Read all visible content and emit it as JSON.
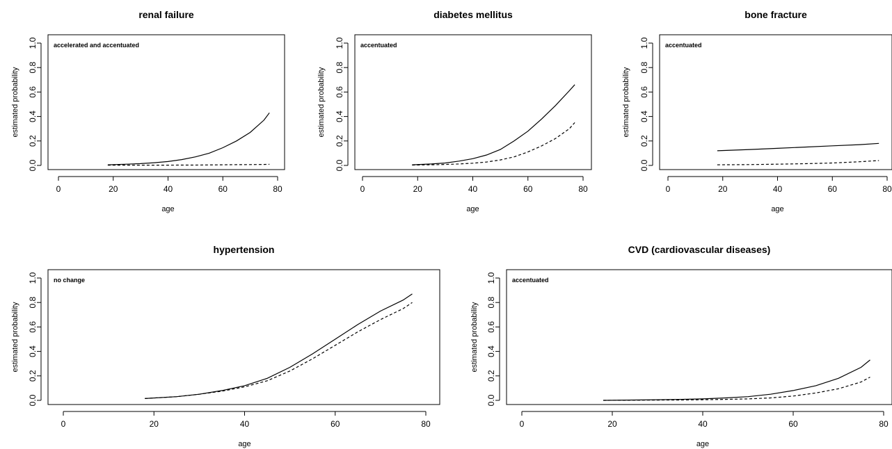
{
  "chart_data": [
    {
      "type": "line",
      "title": "renal failure",
      "xlabel": "age",
      "ylabel": "estimated probability",
      "annotation": "accelerated and accentuated",
      "xlim": [
        0,
        80
      ],
      "ylim": [
        0,
        1
      ],
      "xticks": [
        "0",
        "20",
        "40",
        "60",
        "80"
      ],
      "yticks": [
        "0.0",
        "0.2",
        "0.4",
        "0.6",
        "0.8",
        "1.0"
      ],
      "x": [
        18,
        25,
        30,
        35,
        40,
        45,
        50,
        55,
        60,
        65,
        70,
        75,
        77
      ],
      "series": [
        {
          "style": "solid",
          "values": [
            0.005,
            0.01,
            0.015,
            0.022,
            0.032,
            0.048,
            0.07,
            0.1,
            0.145,
            0.2,
            0.27,
            0.37,
            0.43
          ]
        },
        {
          "style": "dashed",
          "values": [
            0.002,
            0.002,
            0.002,
            0.002,
            0.002,
            0.003,
            0.003,
            0.004,
            0.005,
            0.006,
            0.007,
            0.008,
            0.009
          ]
        }
      ]
    },
    {
      "type": "line",
      "title": "diabetes mellitus",
      "xlabel": "age",
      "ylabel": "estimated probability",
      "annotation": "accentuated",
      "xlim": [
        0,
        80
      ],
      "ylim": [
        0,
        1
      ],
      "xticks": [
        "0",
        "20",
        "40",
        "60",
        "80"
      ],
      "yticks": [
        "0.0",
        "0.2",
        "0.4",
        "0.6",
        "0.8",
        "1.0"
      ],
      "x": [
        18,
        25,
        30,
        35,
        40,
        45,
        50,
        55,
        60,
        65,
        70,
        75,
        77
      ],
      "series": [
        {
          "style": "solid",
          "values": [
            0.005,
            0.012,
            0.02,
            0.035,
            0.055,
            0.085,
            0.13,
            0.2,
            0.28,
            0.38,
            0.49,
            0.61,
            0.66
          ]
        },
        {
          "style": "dashed",
          "values": [
            0.003,
            0.005,
            0.008,
            0.012,
            0.018,
            0.028,
            0.045,
            0.07,
            0.11,
            0.16,
            0.22,
            0.3,
            0.35
          ]
        }
      ]
    },
    {
      "type": "line",
      "title": "bone fracture",
      "xlabel": "age",
      "ylabel": "estimated probability",
      "annotation": "accentuated",
      "xlim": [
        0,
        80
      ],
      "ylim": [
        0,
        1
      ],
      "xticks": [
        "0",
        "20",
        "40",
        "60",
        "80"
      ],
      "yticks": [
        "0.0",
        "0.2",
        "0.4",
        "0.6",
        "0.8",
        "1.0"
      ],
      "x": [
        18,
        30,
        40,
        50,
        60,
        70,
        77
      ],
      "series": [
        {
          "style": "solid",
          "values": [
            0.12,
            0.13,
            0.14,
            0.15,
            0.16,
            0.17,
            0.18
          ]
        },
        {
          "style": "dashed",
          "values": [
            0.005,
            0.007,
            0.01,
            0.014,
            0.02,
            0.03,
            0.04
          ]
        }
      ]
    },
    {
      "type": "line",
      "title": "hypertension",
      "xlabel": "age",
      "ylabel": "estimated probability",
      "annotation": "no change",
      "xlim": [
        0,
        80
      ],
      "ylim": [
        0,
        1
      ],
      "xticks": [
        "0",
        "20",
        "40",
        "60",
        "80"
      ],
      "yticks": [
        "0.0",
        "0.2",
        "0.4",
        "0.6",
        "0.8",
        "1.0"
      ],
      "x": [
        18,
        25,
        30,
        35,
        40,
        45,
        50,
        55,
        60,
        65,
        70,
        75,
        77
      ],
      "series": [
        {
          "style": "solid",
          "values": [
            0.015,
            0.03,
            0.05,
            0.08,
            0.12,
            0.18,
            0.27,
            0.38,
            0.5,
            0.62,
            0.73,
            0.82,
            0.87
          ]
        },
        {
          "style": "dashed",
          "values": [
            0.015,
            0.03,
            0.05,
            0.075,
            0.11,
            0.16,
            0.24,
            0.34,
            0.45,
            0.56,
            0.66,
            0.75,
            0.8
          ]
        }
      ]
    },
    {
      "type": "line",
      "title": "CVD (cardiovascular diseases)",
      "xlabel": "age",
      "ylabel": "estimated probability",
      "annotation": "accentuated",
      "xlim": [
        0,
        80
      ],
      "ylim": [
        0,
        1
      ],
      "xticks": [
        "0",
        "20",
        "40",
        "60",
        "80"
      ],
      "yticks": [
        "0.0",
        "0.2",
        "0.4",
        "0.6",
        "0.8",
        "1.0"
      ],
      "x": [
        18,
        25,
        30,
        35,
        40,
        45,
        50,
        55,
        60,
        65,
        70,
        75,
        77
      ],
      "series": [
        {
          "style": "solid",
          "values": [
            0.0,
            0.003,
            0.005,
            0.008,
            0.012,
            0.02,
            0.03,
            0.05,
            0.08,
            0.12,
            0.18,
            0.27,
            0.33
          ]
        },
        {
          "style": "dashed",
          "values": [
            0.0,
            0.001,
            0.002,
            0.003,
            0.005,
            0.008,
            0.012,
            0.02,
            0.035,
            0.06,
            0.095,
            0.15,
            0.19
          ]
        }
      ]
    }
  ]
}
